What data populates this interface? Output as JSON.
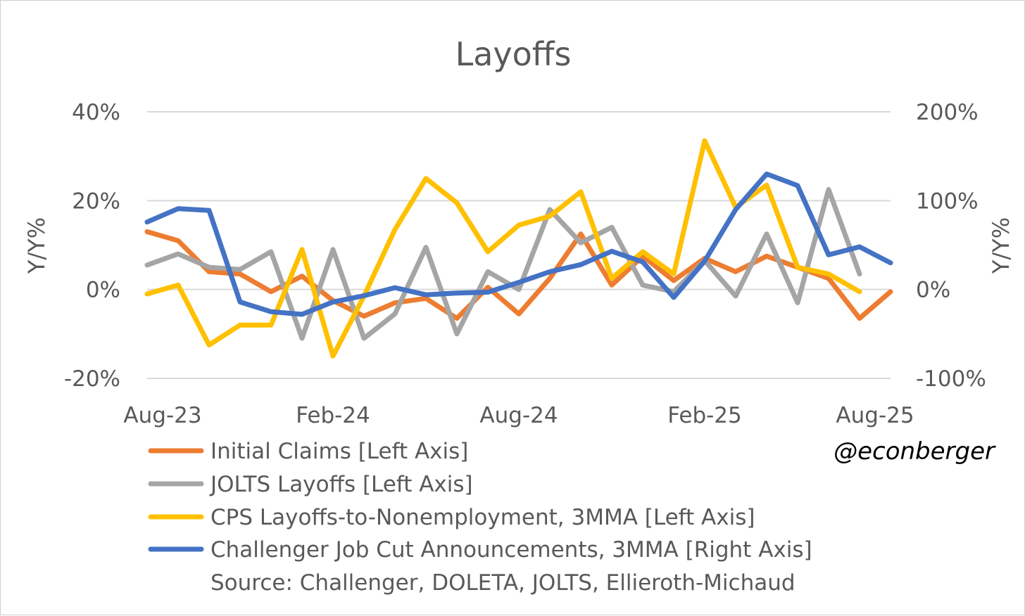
{
  "chart_data": {
    "type": "line",
    "title": "Layoffs",
    "ylabel_left": "Y/Y%",
    "ylabel_right": "Y/Y%",
    "ylim_left": [
      -20,
      40
    ],
    "ylim_right": [
      -100,
      200
    ],
    "yticks_left": [
      "40%",
      "20%",
      "0%",
      "-20%"
    ],
    "yticks_right": [
      "200%",
      "100%",
      "0%",
      "-100%"
    ],
    "ytick_values_left": [
      40,
      20,
      0,
      -20
    ],
    "x_tick_labels": [
      "Aug-23",
      "Feb-24",
      "Aug-24",
      "Feb-25",
      "Aug-25"
    ],
    "x_tick_index": [
      0,
      6,
      12,
      18,
      24
    ],
    "x_points": [
      "Aug-23",
      "Sep-23",
      "Oct-23",
      "Nov-23",
      "Dec-23",
      "Jan-24",
      "Feb-24",
      "Mar-24",
      "Apr-24",
      "May-24",
      "Jun-24",
      "Jul-24",
      "Aug-24",
      "Sep-24",
      "Oct-24",
      "Nov-24",
      "Dec-24",
      "Jan-25",
      "Feb-25",
      "Mar-25",
      "Apr-25",
      "May-25",
      "Jun-25",
      "Jul-25",
      "Aug-25"
    ],
    "series": [
      {
        "name": "Initial Claims [Left Axis]",
        "axis": "left",
        "color": "#ED7D31",
        "values": [
          13,
          11,
          4,
          3.5,
          -0.5,
          3,
          -2.5,
          -6,
          -3,
          -2,
          -6.5,
          0.5,
          -5.5,
          2.5,
          12.5,
          1,
          7.5,
          2,
          7,
          4,
          7.5,
          5,
          2.5,
          -6.5,
          -0.5
        ]
      },
      {
        "name": "JOLTS Layoffs [Left Axis]",
        "axis": "left",
        "color": "#A5A5A5",
        "values": [
          5.5,
          8,
          5,
          4.5,
          8.5,
          -11,
          9,
          -11,
          -5.5,
          9.5,
          -10,
          4,
          0,
          18,
          10.5,
          14,
          1,
          -0.5,
          6.5,
          -1.5,
          12.5,
          -3,
          22.5,
          3.5,
          null
        ]
      },
      {
        "name": "CPS Layoffs-to-Nonemployment, 3MMA [Left Axis]",
        "axis": "left",
        "color": "#FFC000",
        "values": [
          -1,
          1,
          -12.5,
          -8,
          -8,
          9,
          -15,
          -1.5,
          13.5,
          25,
          19.5,
          8.5,
          14.5,
          16.5,
          22,
          2.5,
          8.5,
          3.5,
          33.5,
          18.5,
          23.5,
          5,
          3.5,
          -0.5,
          null
        ]
      },
      {
        "name": "Challenger Job Cut Announcements, 3MMA [Right Axis]",
        "axis": "right",
        "color": "#4472C4",
        "values": [
          76,
          91,
          89,
          -14,
          -25,
          -28,
          -14,
          -7,
          2,
          -6,
          -4,
          -3,
          8,
          20,
          28,
          43,
          31,
          -9,
          32,
          90,
          130,
          117,
          39,
          48,
          30
        ]
      }
    ],
    "legend_placement": "bottom-left",
    "grid": true
  },
  "watermark": "@econberger",
  "source_note": "Source: Challenger, DOLETA, JOLTS, Ellieroth-Michaud"
}
